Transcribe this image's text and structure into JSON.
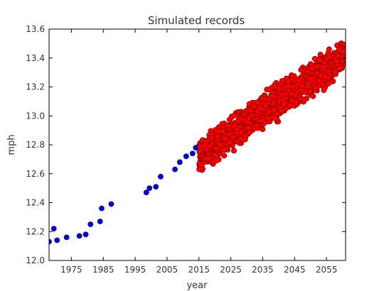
{
  "chart_data": {
    "type": "scatter",
    "title": "Simulated records",
    "xlabel": "year",
    "ylabel": "mph",
    "xlim": [
      1968,
      2061
    ],
    "ylim": [
      12.0,
      13.6
    ],
    "xticks": [
      1975,
      1985,
      1995,
      2005,
      2015,
      2025,
      2035,
      2045,
      2055
    ],
    "yticks": [
      12.0,
      12.2,
      12.4,
      12.6,
      12.8,
      13.0,
      13.2,
      13.4,
      13.6
    ],
    "grid": false,
    "series": [
      {
        "color": "#0000cc",
        "points": [
          [
            1968,
            12.13
          ],
          [
            1969.5,
            12.22
          ],
          [
            1970.5,
            12.14
          ],
          [
            1973.5,
            12.16
          ],
          [
            1977.5,
            12.17
          ],
          [
            1979.5,
            12.18
          ],
          [
            1981,
            12.25
          ],
          [
            1984,
            12.27
          ],
          [
            1984.5,
            12.36
          ],
          [
            1987.5,
            12.39
          ],
          [
            1998.5,
            12.47
          ],
          [
            1999.5,
            12.5
          ],
          [
            2001.5,
            12.51
          ],
          [
            2003,
            12.58
          ],
          [
            2007.5,
            12.63
          ],
          [
            2009,
            12.68
          ],
          [
            2011,
            12.72
          ],
          [
            2013,
            12.74
          ],
          [
            2014,
            12.78
          ]
        ]
      },
      {
        "color": "#ff0000",
        "edge_color": "#8b0000",
        "trend": {
          "start": [
            2015,
            12.72
          ],
          "end": [
            2061,
            13.42
          ]
        },
        "spread": 0.1,
        "x_range": [
          2015,
          2061
        ]
      }
    ]
  }
}
